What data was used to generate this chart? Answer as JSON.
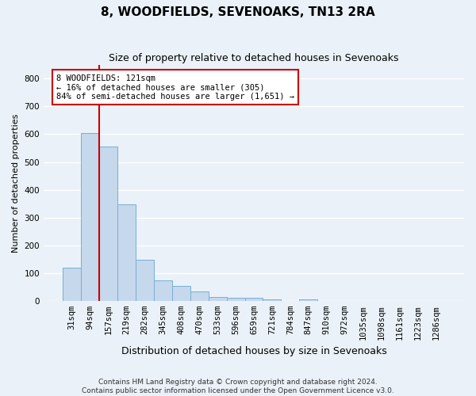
{
  "title": "8, WOODFIELDS, SEVENOAKS, TN13 2RA",
  "subtitle": "Size of property relative to detached houses in Sevenoaks",
  "xlabel": "Distribution of detached houses by size in Sevenoaks",
  "ylabel": "Number of detached properties",
  "footer_line1": "Contains HM Land Registry data © Crown copyright and database right 2024.",
  "footer_line2": "Contains public sector information licensed under the Open Government Licence v3.0.",
  "bar_labels": [
    "31sqm",
    "94sqm",
    "157sqm",
    "219sqm",
    "282sqm",
    "345sqm",
    "408sqm",
    "470sqm",
    "533sqm",
    "596sqm",
    "659sqm",
    "721sqm",
    "784sqm",
    "847sqm",
    "910sqm",
    "972sqm",
    "1035sqm",
    "1098sqm",
    "1161sqm",
    "1223sqm",
    "1286sqm"
  ],
  "bar_values": [
    120,
    605,
    555,
    348,
    148,
    75,
    55,
    33,
    14,
    12,
    12,
    6,
    0,
    7,
    0,
    0,
    0,
    0,
    0,
    0,
    0
  ],
  "bar_color": "#c5d8ec",
  "bar_edge_color": "#7aafd4",
  "background_color": "#eaf1f8",
  "plot_bg_color": "#eaf1f8",
  "grid_color": "#ffffff",
  "red_line_x": 1.5,
  "red_line_color": "#cc0000",
  "annotation_text": "8 WOODFIELDS: 121sqm\n← 16% of detached houses are smaller (305)\n84% of semi-detached houses are larger (1,651) →",
  "annotation_box_color": "#ffffff",
  "annotation_box_edge": "#cc0000",
  "ylim": [
    0,
    850
  ],
  "yticks": [
    0,
    100,
    200,
    300,
    400,
    500,
    600,
    700,
    800
  ],
  "title_fontsize": 11,
  "subtitle_fontsize": 9,
  "ylabel_fontsize": 8,
  "xlabel_fontsize": 9,
  "tick_fontsize": 7.5,
  "annotation_fontsize": 7.5,
  "footer_fontsize": 6.5
}
